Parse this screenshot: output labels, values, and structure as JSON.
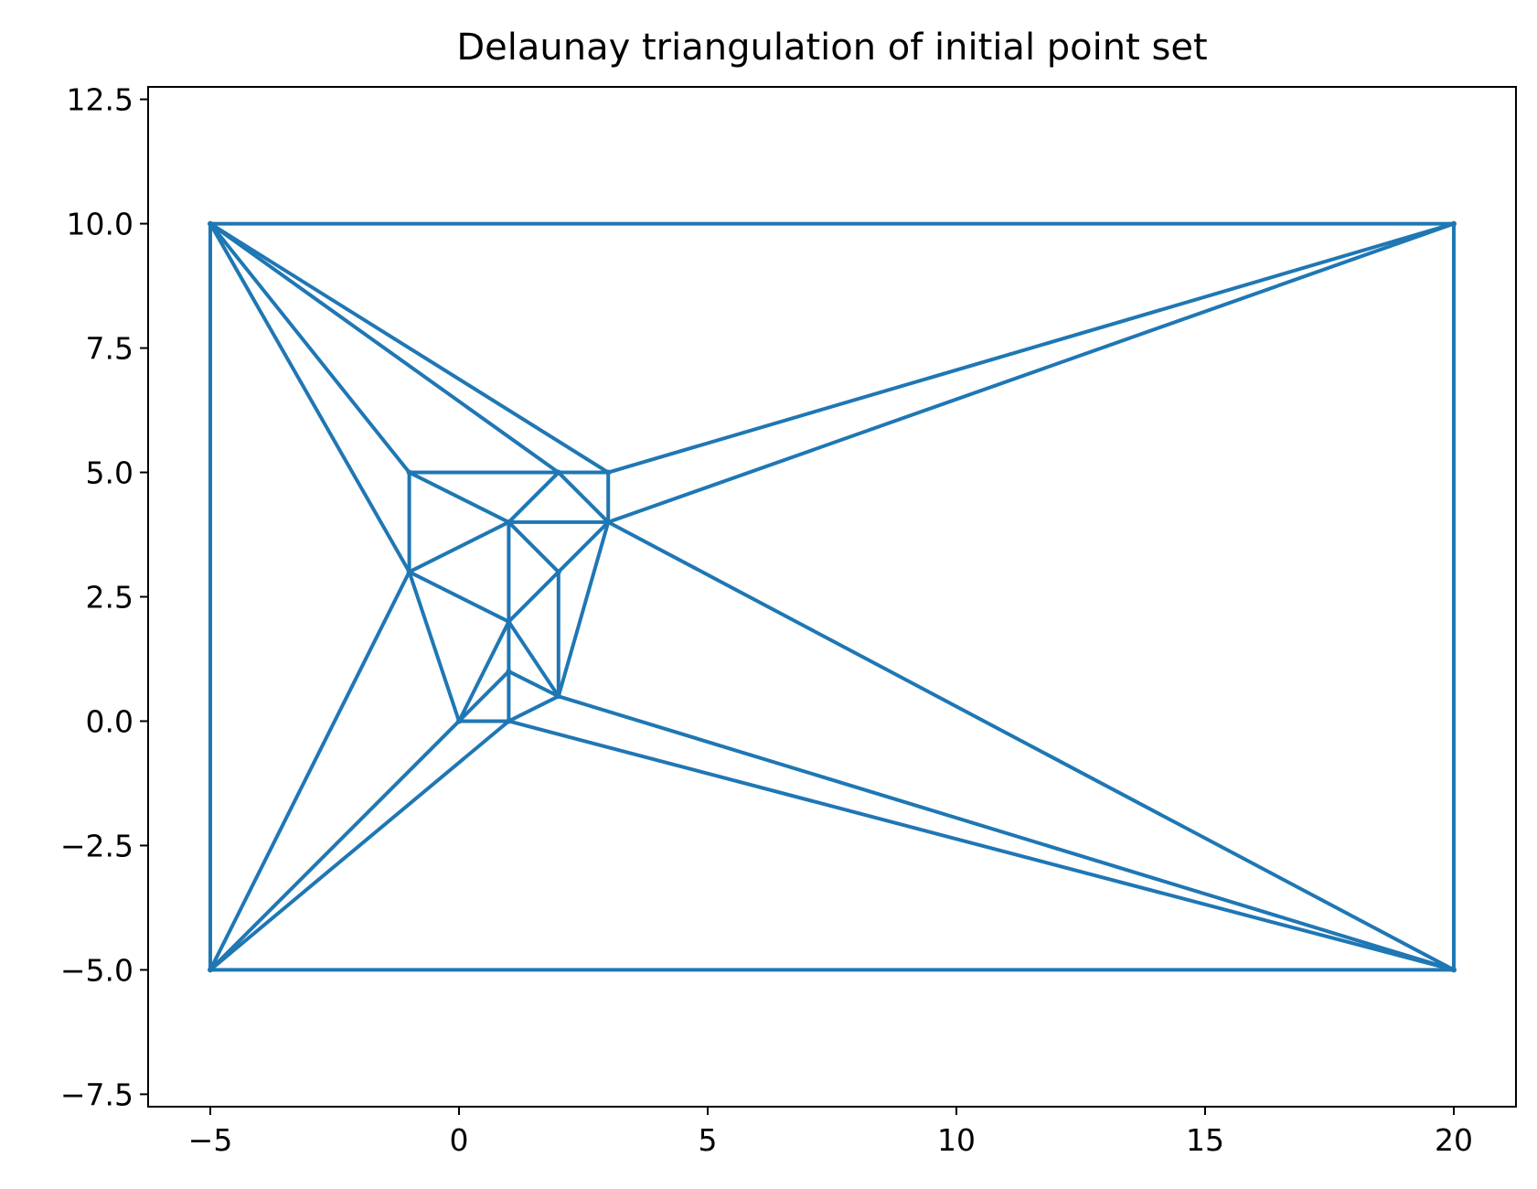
{
  "chart_data": {
    "type": "line",
    "title": "Delaunay triangulation of initial point set",
    "xlabel": "",
    "ylabel": "",
    "xlim": [
      -6.25,
      21.25
    ],
    "ylim": [
      -7.75,
      12.75
    ],
    "xticks": [
      -5,
      0,
      5,
      10,
      15,
      20
    ],
    "yticks": [
      -7.5,
      -5.0,
      -2.5,
      0.0,
      2.5,
      5.0,
      7.5,
      10.0,
      12.5
    ],
    "xtick_labels": [
      "−5",
      "0",
      "5",
      "10",
      "15",
      "20"
    ],
    "ytick_labels": [
      "−7.5",
      "−5.0",
      "−2.5",
      "0.0",
      "2.5",
      "5.0",
      "7.5",
      "10.0",
      "12.5"
    ],
    "grid": false,
    "line_color": "#1f77b4",
    "points": [
      [
        -5,
        10
      ],
      [
        20,
        10
      ],
      [
        -5,
        -5
      ],
      [
        20,
        -5
      ],
      [
        -1,
        5
      ],
      [
        2,
        5
      ],
      [
        3,
        5
      ],
      [
        1,
        4
      ],
      [
        3,
        4
      ],
      [
        -1,
        3
      ],
      [
        2,
        3
      ],
      [
        1,
        2
      ],
      [
        1,
        1
      ],
      [
        2,
        0.5
      ],
      [
        0,
        0
      ],
      [
        1,
        0
      ]
    ],
    "edges": [
      [
        [
          -5,
          10
        ],
        [
          20,
          10
        ]
      ],
      [
        [
          -5,
          10
        ],
        [
          -5,
          -5
        ]
      ],
      [
        [
          -5,
          -5
        ],
        [
          20,
          -5
        ]
      ],
      [
        [
          20,
          10
        ],
        [
          20,
          -5
        ]
      ],
      [
        [
          -5,
          10
        ],
        [
          -1,
          5
        ]
      ],
      [
        [
          -5,
          10
        ],
        [
          -1,
          3
        ]
      ],
      [
        [
          -5,
          10
        ],
        [
          2,
          5
        ]
      ],
      [
        [
          -5,
          10
        ],
        [
          3,
          5
        ]
      ],
      [
        [
          20,
          10
        ],
        [
          3,
          5
        ]
      ],
      [
        [
          20,
          10
        ],
        [
          3,
          4
        ]
      ],
      [
        [
          -5,
          -5
        ],
        [
          -1,
          3
        ]
      ],
      [
        [
          -5,
          -5
        ],
        [
          0,
          0
        ]
      ],
      [
        [
          -5,
          -5
        ],
        [
          1,
          0
        ]
      ],
      [
        [
          20,
          -5
        ],
        [
          3,
          4
        ]
      ],
      [
        [
          20,
          -5
        ],
        [
          2,
          0.5
        ]
      ],
      [
        [
          20,
          -5
        ],
        [
          1,
          0
        ]
      ],
      [
        [
          -1,
          5
        ],
        [
          2,
          5
        ]
      ],
      [
        [
          -1,
          5
        ],
        [
          -1,
          3
        ]
      ],
      [
        [
          -1,
          5
        ],
        [
          1,
          4
        ]
      ],
      [
        [
          2,
          5
        ],
        [
          3,
          5
        ]
      ],
      [
        [
          2,
          5
        ],
        [
          1,
          4
        ]
      ],
      [
        [
          2,
          5
        ],
        [
          3,
          4
        ]
      ],
      [
        [
          3,
          5
        ],
        [
          3,
          4
        ]
      ],
      [
        [
          1,
          4
        ],
        [
          3,
          4
        ]
      ],
      [
        [
          1,
          4
        ],
        [
          -1,
          3
        ]
      ],
      [
        [
          1,
          4
        ],
        [
          2,
          3
        ]
      ],
      [
        [
          1,
          4
        ],
        [
          1,
          2
        ]
      ],
      [
        [
          3,
          4
        ],
        [
          2,
          3
        ]
      ],
      [
        [
          3,
          4
        ],
        [
          2,
          0.5
        ]
      ],
      [
        [
          -1,
          3
        ],
        [
          1,
          2
        ]
      ],
      [
        [
          -1,
          3
        ],
        [
          0,
          0
        ]
      ],
      [
        [
          2,
          3
        ],
        [
          1,
          2
        ]
      ],
      [
        [
          2,
          3
        ],
        [
          2,
          0.5
        ]
      ],
      [
        [
          1,
          2
        ],
        [
          1,
          1
        ]
      ],
      [
        [
          1,
          2
        ],
        [
          2,
          0.5
        ]
      ],
      [
        [
          1,
          2
        ],
        [
          0,
          0
        ]
      ],
      [
        [
          1,
          1
        ],
        [
          0,
          0
        ]
      ],
      [
        [
          1,
          1
        ],
        [
          1,
          0
        ]
      ],
      [
        [
          1,
          1
        ],
        [
          2,
          0.5
        ]
      ],
      [
        [
          0,
          0
        ],
        [
          1,
          0
        ]
      ],
      [
        [
          1,
          0
        ],
        [
          2,
          0.5
        ]
      ]
    ]
  }
}
